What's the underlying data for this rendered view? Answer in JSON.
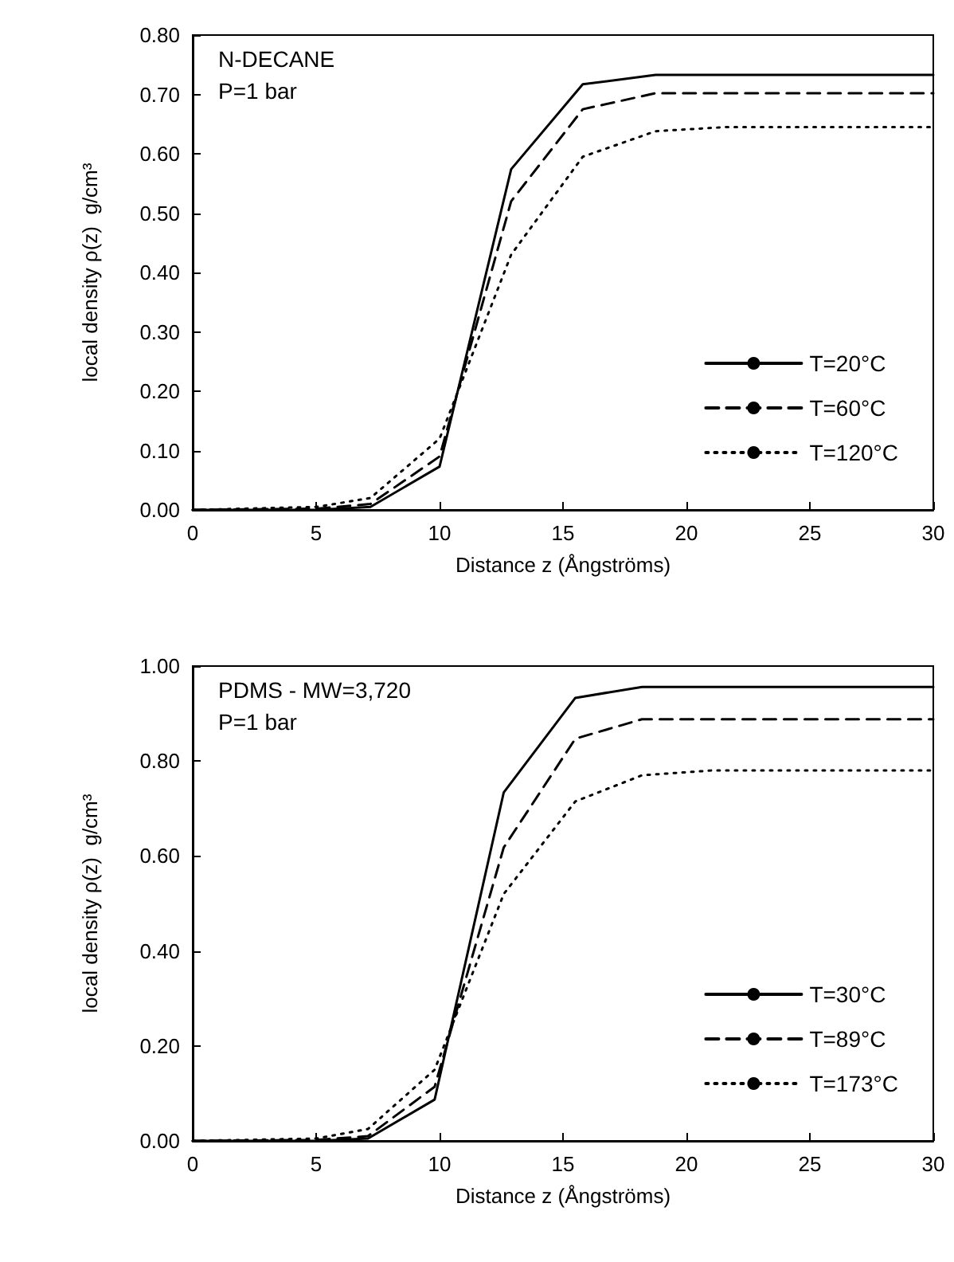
{
  "chart_data": [
    {
      "type": "line",
      "xlabel": "Distance z (Ångströms)",
      "ylabel": "local density ρ(z)  g/cm³",
      "annotations": [
        "N-DECANE",
        "P=1 bar"
      ],
      "xlim": [
        0,
        30
      ],
      "xticks": [
        0,
        5,
        10,
        15,
        20,
        25,
        30
      ],
      "ylim": [
        0,
        0.8
      ],
      "yticks": [
        {
          "value": 0,
          "label": "0.00"
        },
        {
          "value": 0.1,
          "label": "0.10"
        },
        {
          "value": 0.2,
          "label": "0.20"
        },
        {
          "value": 0.3,
          "label": "0.30"
        },
        {
          "value": 0.4,
          "label": "0.40"
        },
        {
          "value": 0.5,
          "label": "0.50"
        },
        {
          "value": 0.6,
          "label": "0.60"
        },
        {
          "value": 0.7,
          "label": "0.70"
        },
        {
          "value": 0.8,
          "label": "0.80"
        }
      ],
      "grid": false,
      "legend": "bottom right",
      "marker": "none",
      "series": [
        {
          "name": "T=20°C",
          "color": "#000000",
          "line_style": "solid",
          "x": [
            0,
            5,
            7.2,
            10,
            12.9,
            15.8,
            18.75,
            30
          ],
          "values": [
            0,
            0,
            0.005,
            0.073,
            0.574,
            0.717,
            0.733,
            0.733
          ]
        },
        {
          "name": "T=60°C",
          "color": "#000000",
          "line_style": "dashed",
          "x": [
            0,
            5,
            7.2,
            10,
            12.9,
            15.8,
            18.75,
            30
          ],
          "values": [
            0,
            0.002,
            0.01,
            0.09,
            0.52,
            0.675,
            0.702,
            0.702
          ]
        },
        {
          "name": "T=120°C",
          "color": "#000000",
          "line_style": "dotted",
          "x": [
            0,
            5,
            7.2,
            10,
            12.9,
            15.8,
            18.75,
            21.6,
            30
          ],
          "values": [
            0,
            0.005,
            0.02,
            0.12,
            0.43,
            0.595,
            0.638,
            0.645,
            0.645
          ]
        }
      ]
    },
    {
      "type": "line",
      "xlabel": "Distance z (Ångströms)",
      "ylabel": "local density ρ(z)  g/cm³",
      "annotations": [
        "PDMS - MW=3,720",
        "P=1 bar"
      ],
      "xlim": [
        0,
        30
      ],
      "xticks": [
        0,
        5,
        10,
        15,
        20,
        25,
        30
      ],
      "ylim": [
        0,
        1
      ],
      "yticks": [
        {
          "value": 0,
          "label": "0.00"
        },
        {
          "value": 0.2,
          "label": "0.20"
        },
        {
          "value": 0.4,
          "label": "0.40"
        },
        {
          "value": 0.6,
          "label": "0.60"
        },
        {
          "value": 0.8,
          "label": "0.80"
        },
        {
          "value": 1,
          "label": "1.00"
        }
      ],
      "grid": false,
      "legend": "bottom right",
      "marker": "none",
      "series": [
        {
          "name": "T=30°C",
          "color": "#000000",
          "line_style": "solid",
          "x": [
            0,
            5,
            7.1,
            9.8,
            12.6,
            15.5,
            18.2,
            30
          ],
          "values": [
            0,
            0,
            0.005,
            0.087,
            0.734,
            0.933,
            0.956,
            0.956
          ]
        },
        {
          "name": "T=89°C",
          "color": "#000000",
          "line_style": "dashed",
          "x": [
            0,
            5,
            7.1,
            9.8,
            12.6,
            15.5,
            18.2,
            30
          ],
          "values": [
            0,
            0.002,
            0.01,
            0.114,
            0.618,
            0.847,
            0.888,
            0.888
          ]
        },
        {
          "name": "T=173°C",
          "color": "#000000",
          "line_style": "dotted",
          "x": [
            0,
            5,
            7.1,
            9.8,
            12.6,
            15.5,
            18.2,
            21,
            30
          ],
          "values": [
            0,
            0.005,
            0.025,
            0.15,
            0.52,
            0.715,
            0.77,
            0.78,
            0.78
          ]
        }
      ]
    }
  ]
}
